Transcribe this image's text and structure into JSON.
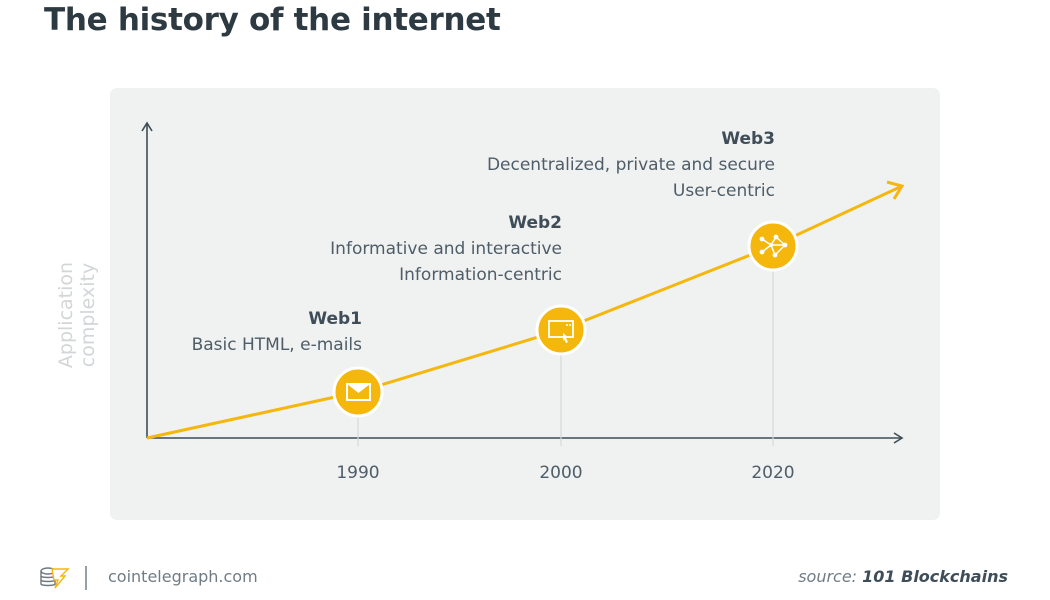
{
  "title": "The history of the internet",
  "y_axis_label": "Application complexity",
  "eras": [
    {
      "name": "Web1",
      "lines": [
        "Basic HTML, e-mails"
      ],
      "year": "1990",
      "icon": "envelope-icon"
    },
    {
      "name": "Web2",
      "lines": [
        "Informative and interactive",
        "Information-centric"
      ],
      "year": "2000",
      "icon": "browser-cursor-icon"
    },
    {
      "name": "Web3",
      "lines": [
        "Decentralized, private and secure",
        "User-centric"
      ],
      "year": "2020",
      "icon": "network-icon"
    }
  ],
  "colors": {
    "accent": "#f5b70c",
    "panel": "#f0f1f1",
    "text": "#4e5d68"
  },
  "footer": {
    "site": "cointelegraph.com",
    "source_prefix": "source:",
    "source_name": "101 Blockchains"
  }
}
